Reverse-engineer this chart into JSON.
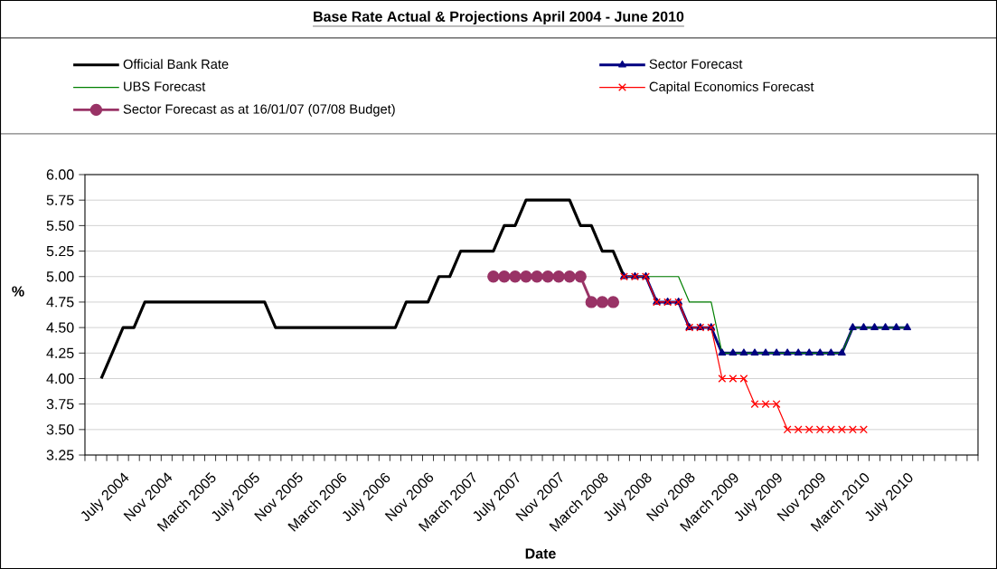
{
  "chart_data": {
    "type": "line",
    "title": "Base Rate Actual & Projections April 2004 - June 2010",
    "xlabel": "Date",
    "ylabel": "%",
    "categories": [
      null,
      null,
      null,
      "July 2004",
      null,
      null,
      null,
      "Nov 2004",
      null,
      null,
      null,
      "March 2005",
      null,
      null,
      null,
      "July 2005",
      null,
      null,
      null,
      "Nov 2005",
      null,
      null,
      null,
      "March 2006",
      null,
      null,
      null,
      "July 2006",
      null,
      null,
      null,
      "Nov 2006",
      null,
      null,
      null,
      "March 2007",
      null,
      null,
      null,
      "July 2007",
      null,
      null,
      null,
      "Nov 2007",
      null,
      null,
      null,
      "March 2008",
      null,
      null,
      null,
      "July 2008",
      null,
      null,
      null,
      "Nov 2008",
      null,
      null,
      null,
      "March 2009",
      null,
      null,
      null,
      "July 2009",
      null,
      null,
      null,
      "Nov 2009",
      null,
      null,
      null,
      "March 2010",
      null,
      null,
      null,
      "July 2010",
      null,
      null,
      null,
      null,
      null,
      null
    ],
    "series": [
      {
        "name": "Official Bank Rate",
        "color": "#000000",
        "marker": "none",
        "values": [
          null,
          4.0,
          4.25,
          4.5,
          4.5,
          4.75,
          4.75,
          4.75,
          4.75,
          4.75,
          4.75,
          4.75,
          4.75,
          4.75,
          4.75,
          4.75,
          4.75,
          4.5,
          4.5,
          4.5,
          4.5,
          4.5,
          4.5,
          4.5,
          4.5,
          4.5,
          4.5,
          4.5,
          4.5,
          4.75,
          4.75,
          4.75,
          5.0,
          5.0,
          5.25,
          5.25,
          5.25,
          5.25,
          5.5,
          5.5,
          5.75,
          5.75,
          5.75,
          5.75,
          5.75,
          5.5,
          5.5,
          5.25,
          5.25,
          5.0,
          null,
          null,
          null,
          null,
          null,
          null,
          null,
          null,
          null,
          null,
          null,
          null,
          null,
          null,
          null,
          null,
          null,
          null,
          null,
          null,
          null,
          null,
          null,
          null,
          null,
          null,
          null,
          null,
          null,
          null,
          null,
          null
        ]
      },
      {
        "name": "Sector Forecast",
        "color": "#000080",
        "marker": "triangle",
        "values": [
          null,
          null,
          null,
          null,
          null,
          null,
          null,
          null,
          null,
          null,
          null,
          null,
          null,
          null,
          null,
          null,
          null,
          null,
          null,
          null,
          null,
          null,
          null,
          null,
          null,
          null,
          null,
          null,
          null,
          null,
          null,
          null,
          null,
          null,
          null,
          null,
          null,
          null,
          null,
          null,
          null,
          null,
          null,
          null,
          null,
          null,
          null,
          null,
          null,
          5.0,
          5.0,
          5.0,
          4.75,
          4.75,
          4.75,
          4.5,
          4.5,
          4.5,
          4.25,
          4.25,
          4.25,
          4.25,
          4.25,
          4.25,
          4.25,
          4.25,
          4.25,
          4.25,
          4.25,
          4.25,
          4.5,
          4.5,
          4.5,
          4.5,
          4.5,
          4.5,
          null,
          null,
          null,
          null,
          null,
          null
        ]
      },
      {
        "name": "UBS Forecast",
        "color": "#008000",
        "marker": "none",
        "values": [
          null,
          null,
          null,
          null,
          null,
          null,
          null,
          null,
          null,
          null,
          null,
          null,
          null,
          null,
          null,
          null,
          null,
          null,
          null,
          null,
          null,
          null,
          null,
          null,
          null,
          null,
          null,
          null,
          null,
          null,
          null,
          null,
          null,
          null,
          null,
          null,
          null,
          null,
          null,
          null,
          null,
          null,
          null,
          null,
          null,
          null,
          null,
          null,
          null,
          5.0,
          5.0,
          5.0,
          5.0,
          5.0,
          5.0,
          4.75,
          4.75,
          4.75,
          4.25,
          4.25,
          4.25,
          4.25,
          4.25,
          4.25,
          4.25,
          4.25,
          4.25,
          4.25,
          4.25,
          4.25,
          4.5,
          4.5,
          4.5,
          4.5,
          4.5,
          4.5,
          null,
          null,
          null,
          null,
          null,
          null
        ]
      },
      {
        "name": "Capital Economics Forecast",
        "color": "#ff0000",
        "marker": "cross",
        "values": [
          null,
          null,
          null,
          null,
          null,
          null,
          null,
          null,
          null,
          null,
          null,
          null,
          null,
          null,
          null,
          null,
          null,
          null,
          null,
          null,
          null,
          null,
          null,
          null,
          null,
          null,
          null,
          null,
          null,
          null,
          null,
          null,
          null,
          null,
          null,
          null,
          null,
          null,
          null,
          null,
          null,
          null,
          null,
          null,
          null,
          null,
          null,
          null,
          null,
          5.0,
          5.0,
          5.0,
          4.75,
          4.75,
          4.75,
          4.5,
          4.5,
          4.5,
          4.0,
          4.0,
          4.0,
          3.75,
          3.75,
          3.75,
          3.5,
          3.5,
          3.5,
          3.5,
          3.5,
          3.5,
          3.5,
          3.5,
          null,
          null,
          null,
          null,
          null,
          null,
          null,
          null,
          null,
          null
        ]
      },
      {
        "name": "Sector Forecast as at 16/01/07 (07/08 Budget)",
        "color": "#993366",
        "marker": "circle",
        "values": [
          null,
          null,
          null,
          null,
          null,
          null,
          null,
          null,
          null,
          null,
          null,
          null,
          null,
          null,
          null,
          null,
          null,
          null,
          null,
          null,
          null,
          null,
          null,
          null,
          null,
          null,
          null,
          null,
          null,
          null,
          null,
          null,
          null,
          null,
          null,
          null,
          null,
          5.0,
          5.0,
          5.0,
          5.0,
          5.0,
          5.0,
          5.0,
          5.0,
          5.0,
          4.75,
          4.75,
          4.75,
          null,
          null,
          null,
          null,
          null,
          null,
          null,
          null,
          null,
          null,
          null,
          null,
          null,
          null,
          null,
          null,
          null,
          null,
          null,
          null,
          null,
          null,
          null,
          null,
          null,
          null,
          null,
          null,
          null,
          null,
          null,
          null,
          null
        ]
      }
    ],
    "ylim": [
      3.25,
      6.0
    ],
    "yticks": [
      {
        "value": 3.25,
        "label": "3.25"
      },
      {
        "value": 3.5,
        "label": "3.50"
      },
      {
        "value": 3.75,
        "label": "3.75"
      },
      {
        "value": 4.0,
        "label": "4.00"
      },
      {
        "value": 4.25,
        "label": "4.25"
      },
      {
        "value": 4.5,
        "label": "4.50"
      },
      {
        "value": 4.75,
        "label": "4.75"
      },
      {
        "value": 5.0,
        "label": "5.00"
      },
      {
        "value": 5.25,
        "label": "5.25"
      },
      {
        "value": 5.5,
        "label": "5.50"
      },
      {
        "value": 5.75,
        "label": "5.75"
      },
      {
        "value": 6.0,
        "label": "6.00"
      }
    ],
    "grid": "y",
    "legend": "top",
    "line_style": "solid"
  }
}
